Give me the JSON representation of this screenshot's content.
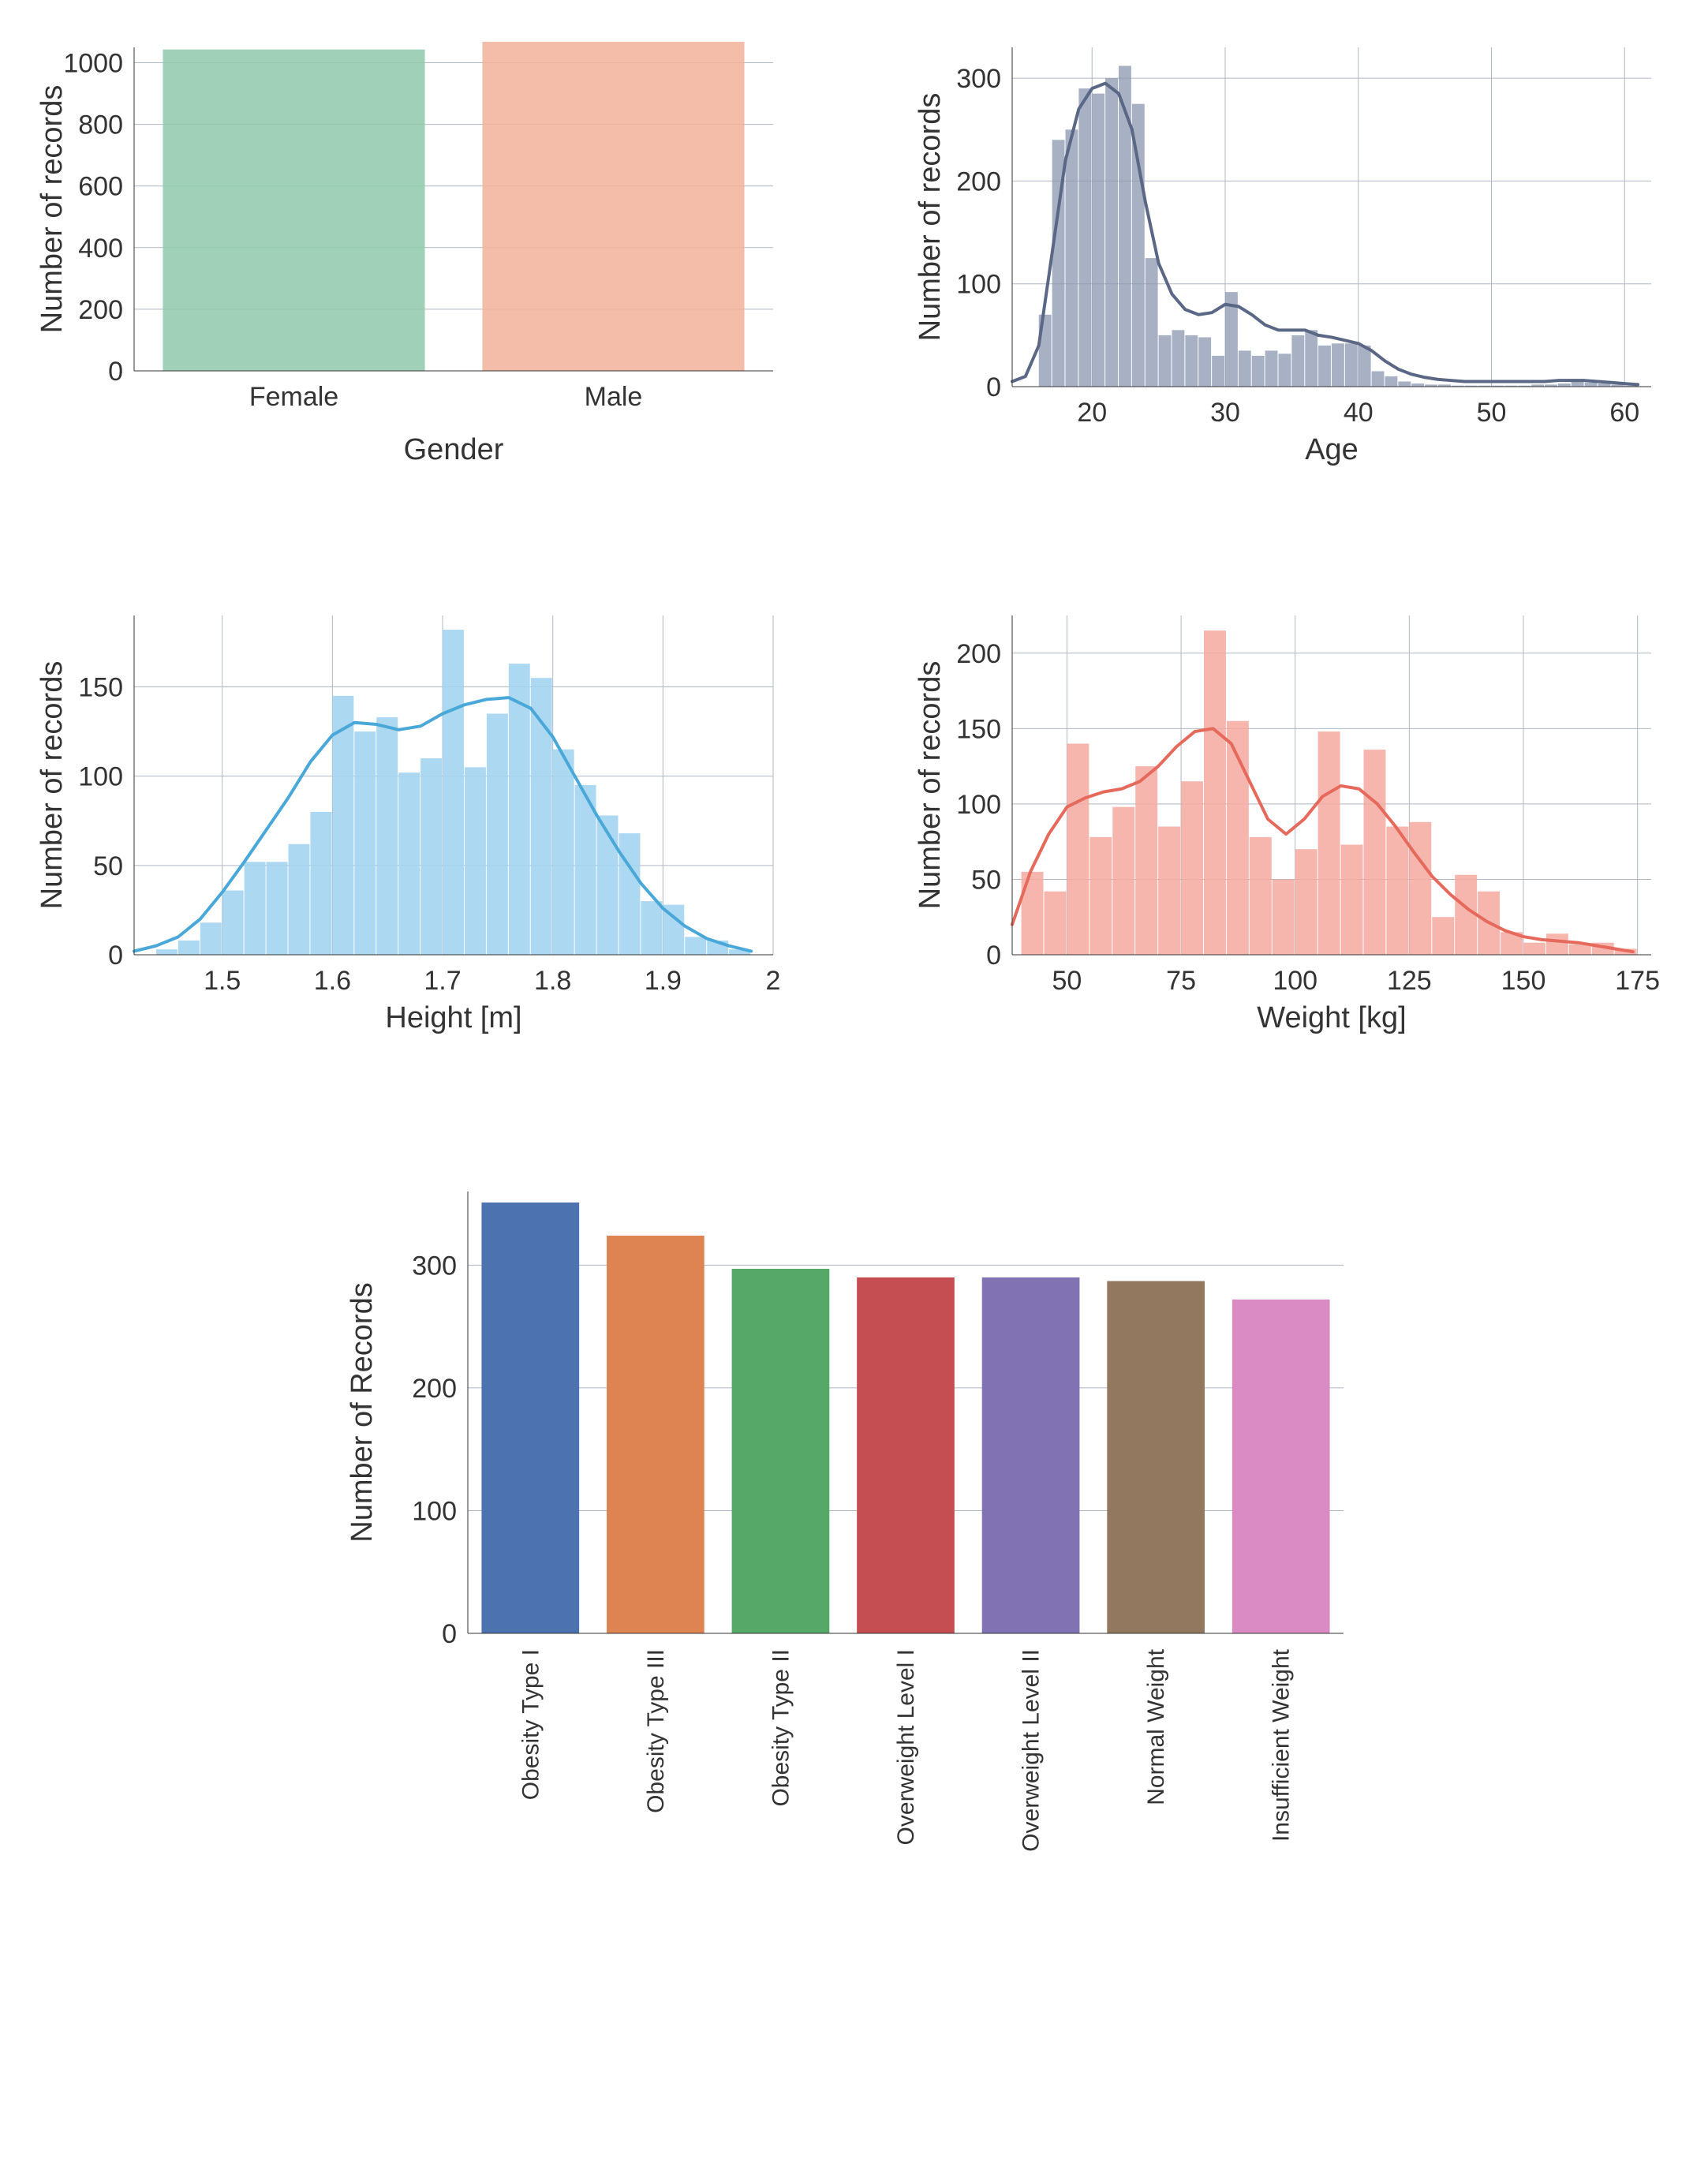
{
  "layout": {
    "grid_color": "#b0b8c4",
    "background": "#ffffff",
    "axis_label_fontsize": 38,
    "tick_label_fontsize": 34
  },
  "gender_chart": {
    "type": "bar",
    "ylabel": "Number of records",
    "xlabel": "Gender",
    "categories": [
      "Female",
      "Male"
    ],
    "values": [
      1043,
      1068
    ],
    "bar_colors": [
      "#8fc9ab",
      "#f2b19a"
    ],
    "bar_alpha": 0.85,
    "ylim": [
      0,
      1050
    ],
    "yticks": [
      0,
      200,
      400,
      600,
      800,
      1000
    ],
    "bar_width": 0.82
  },
  "age_chart": {
    "type": "histogram+kde",
    "ylabel": "Number of records",
    "xlabel": "Age",
    "bar_color": "#8b95b0",
    "bar_alpha": 0.75,
    "line_color": "#5a6785",
    "line_width": 4,
    "xlim": [
      14,
      62
    ],
    "ylim": [
      0,
      330
    ],
    "yticks": [
      0,
      100,
      200,
      300
    ],
    "xticks": [
      20,
      30,
      40,
      50,
      60
    ],
    "bins": [
      15,
      16,
      17,
      18,
      19,
      20,
      21,
      22,
      23,
      24,
      25,
      26,
      27,
      28,
      29,
      30,
      31,
      32,
      33,
      34,
      35,
      36,
      37,
      38,
      39,
      40,
      41,
      42,
      43,
      44,
      45,
      46,
      47,
      48,
      49,
      50,
      51,
      52,
      53,
      54,
      55,
      56,
      57,
      58,
      59,
      60
    ],
    "counts": [
      0,
      70,
      240,
      250,
      290,
      285,
      300,
      312,
      275,
      125,
      50,
      55,
      50,
      48,
      30,
      92,
      35,
      30,
      35,
      32,
      50,
      55,
      40,
      42,
      42,
      40,
      15,
      10,
      5,
      3,
      2,
      2,
      1,
      1,
      1,
      1,
      1,
      1,
      2,
      2,
      3,
      5,
      4,
      3,
      2,
      1
    ],
    "kde": [
      [
        14,
        5
      ],
      [
        15,
        10
      ],
      [
        16,
        40
      ],
      [
        17,
        130
      ],
      [
        18,
        220
      ],
      [
        19,
        270
      ],
      [
        20,
        290
      ],
      [
        21,
        295
      ],
      [
        22,
        285
      ],
      [
        23,
        250
      ],
      [
        24,
        180
      ],
      [
        25,
        120
      ],
      [
        26,
        90
      ],
      [
        27,
        75
      ],
      [
        28,
        70
      ],
      [
        29,
        72
      ],
      [
        30,
        80
      ],
      [
        31,
        78
      ],
      [
        32,
        70
      ],
      [
        33,
        60
      ],
      [
        34,
        55
      ],
      [
        35,
        55
      ],
      [
        36,
        55
      ],
      [
        37,
        50
      ],
      [
        38,
        48
      ],
      [
        39,
        45
      ],
      [
        40,
        42
      ],
      [
        41,
        35
      ],
      [
        42,
        25
      ],
      [
        43,
        17
      ],
      [
        44,
        12
      ],
      [
        45,
        9
      ],
      [
        46,
        7
      ],
      [
        47,
        6
      ],
      [
        48,
        5
      ],
      [
        49,
        5
      ],
      [
        50,
        5
      ],
      [
        51,
        5
      ],
      [
        52,
        5
      ],
      [
        53,
        5
      ],
      [
        54,
        5
      ],
      [
        55,
        6
      ],
      [
        56,
        6
      ],
      [
        57,
        6
      ],
      [
        58,
        5
      ],
      [
        59,
        4
      ],
      [
        60,
        3
      ],
      [
        61,
        2
      ]
    ]
  },
  "height_chart": {
    "type": "histogram+kde",
    "ylabel": "Number of records",
    "xlabel": "Height [m]",
    "bar_color": "#a3d4ef",
    "bar_alpha": 0.9,
    "line_color": "#4aa8d8",
    "line_width": 4,
    "xlim": [
      1.42,
      2.0
    ],
    "ylim": [
      0,
      190
    ],
    "yticks": [
      0,
      50,
      100,
      150
    ],
    "xticks": [
      1.5,
      1.6,
      1.7,
      1.8,
      1.9,
      2.0
    ],
    "bin_width": 0.02,
    "bins": [
      1.44,
      1.46,
      1.48,
      1.5,
      1.52,
      1.54,
      1.56,
      1.58,
      1.6,
      1.62,
      1.64,
      1.66,
      1.68,
      1.7,
      1.72,
      1.74,
      1.76,
      1.78,
      1.8,
      1.82,
      1.84,
      1.86,
      1.88,
      1.9,
      1.92,
      1.94,
      1.96
    ],
    "counts": [
      3,
      8,
      18,
      36,
      52,
      52,
      62,
      80,
      145,
      125,
      133,
      102,
      110,
      182,
      105,
      135,
      163,
      155,
      115,
      95,
      78,
      68,
      30,
      28,
      10,
      8,
      3
    ],
    "kde": [
      [
        1.42,
        2
      ],
      [
        1.44,
        5
      ],
      [
        1.46,
        10
      ],
      [
        1.48,
        20
      ],
      [
        1.5,
        35
      ],
      [
        1.52,
        52
      ],
      [
        1.54,
        70
      ],
      [
        1.56,
        88
      ],
      [
        1.58,
        108
      ],
      [
        1.6,
        123
      ],
      [
        1.62,
        130
      ],
      [
        1.64,
        129
      ],
      [
        1.66,
        126
      ],
      [
        1.68,
        128
      ],
      [
        1.7,
        135
      ],
      [
        1.72,
        140
      ],
      [
        1.74,
        143
      ],
      [
        1.76,
        144
      ],
      [
        1.78,
        138
      ],
      [
        1.8,
        122
      ],
      [
        1.82,
        100
      ],
      [
        1.84,
        78
      ],
      [
        1.86,
        58
      ],
      [
        1.88,
        40
      ],
      [
        1.9,
        26
      ],
      [
        1.92,
        16
      ],
      [
        1.94,
        9
      ],
      [
        1.96,
        5
      ],
      [
        1.98,
        2
      ]
    ]
  },
  "weight_chart": {
    "type": "histogram+kde",
    "ylabel": "Number of records",
    "xlabel": "Weight [kg]",
    "bar_color": "#f4a9a0",
    "bar_alpha": 0.85,
    "line_color": "#e66a5c",
    "line_width": 4,
    "xlim": [
      38,
      178
    ],
    "ylim": [
      0,
      225
    ],
    "yticks": [
      0,
      50,
      100,
      150,
      200
    ],
    "xticks": [
      50,
      75,
      100,
      125,
      150,
      175
    ],
    "bin_width": 5,
    "bins": [
      40,
      45,
      50,
      55,
      60,
      65,
      70,
      75,
      80,
      85,
      90,
      95,
      100,
      105,
      110,
      115,
      120,
      125,
      130,
      135,
      140,
      145,
      150,
      155,
      160,
      165,
      170
    ],
    "counts": [
      55,
      42,
      140,
      78,
      98,
      125,
      85,
      115,
      215,
      155,
      78,
      50,
      70,
      148,
      73,
      136,
      85,
      88,
      25,
      53,
      42,
      15,
      8,
      14,
      7,
      8,
      4
    ],
    "kde": [
      [
        38,
        20
      ],
      [
        42,
        55
      ],
      [
        46,
        80
      ],
      [
        50,
        98
      ],
      [
        54,
        104
      ],
      [
        58,
        108
      ],
      [
        62,
        110
      ],
      [
        66,
        115
      ],
      [
        70,
        125
      ],
      [
        74,
        138
      ],
      [
        78,
        148
      ],
      [
        82,
        150
      ],
      [
        86,
        140
      ],
      [
        90,
        115
      ],
      [
        94,
        90
      ],
      [
        98,
        80
      ],
      [
        102,
        90
      ],
      [
        106,
        105
      ],
      [
        110,
        112
      ],
      [
        114,
        110
      ],
      [
        118,
        100
      ],
      [
        122,
        85
      ],
      [
        126,
        68
      ],
      [
        130,
        52
      ],
      [
        134,
        40
      ],
      [
        138,
        30
      ],
      [
        142,
        22
      ],
      [
        146,
        16
      ],
      [
        150,
        12
      ],
      [
        154,
        10
      ],
      [
        158,
        9
      ],
      [
        162,
        8
      ],
      [
        166,
        6
      ],
      [
        170,
        4
      ],
      [
        174,
        2
      ]
    ]
  },
  "obesity_chart": {
    "type": "bar",
    "ylabel": "Number of Records",
    "categories": [
      "Obesity Type I",
      "Obesity Type III",
      "Obesity Type II",
      "Overweight Level I",
      "Overweight Level II",
      "Normal Weight",
      "Insufficient Weight"
    ],
    "values": [
      351,
      324,
      297,
      290,
      290,
      287,
      272
    ],
    "bar_colors": [
      "#4c72b0",
      "#dd8452",
      "#55a868",
      "#c44e52",
      "#8172b3",
      "#937860",
      "#da8bc3"
    ],
    "ylim": [
      0,
      360
    ],
    "yticks": [
      0,
      100,
      200,
      300
    ],
    "bar_width": 0.78,
    "rotate_xticks": 90
  }
}
